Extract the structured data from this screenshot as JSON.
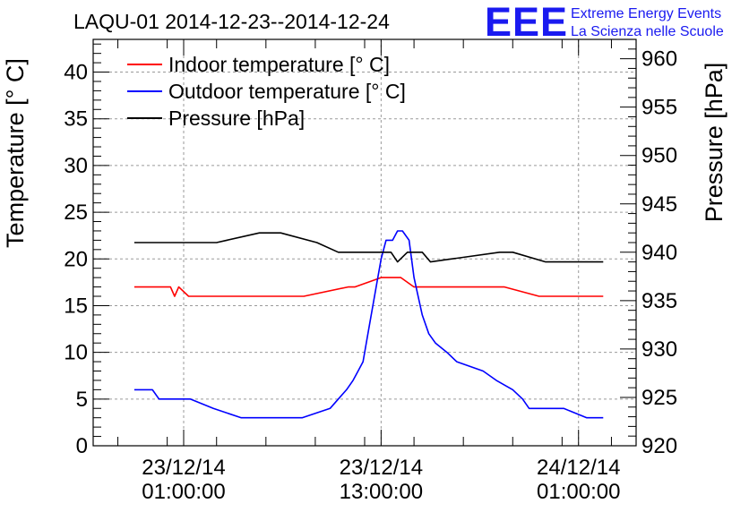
{
  "chart_data": {
    "type": "line",
    "title": "LAQU-01 2014-12-23--2014-12-24",
    "logo": {
      "letters": "EEE",
      "line1": "Extreme Energy Events",
      "line2": "La Scienza nelle Scuole"
    },
    "ylabel": "Temperature [° C]",
    "y2label": "Pressure [hPa]",
    "xlim_hours": [
      -4.5,
      28.5
    ],
    "ylim": [
      0,
      43.5
    ],
    "y2lim": [
      920,
      962
    ],
    "grid": true,
    "legend_position": "top-left",
    "x_ticks": [
      {
        "hour": 1,
        "line1": "23/12/14",
        "line2": "01:00:00"
      },
      {
        "hour": 13,
        "line1": "23/12/14",
        "line2": "13:00:00"
      },
      {
        "hour": 25,
        "line1": "24/12/14",
        "line2": "01:00:00"
      }
    ],
    "y_ticks": [
      0,
      5,
      10,
      15,
      20,
      25,
      30,
      35,
      40
    ],
    "y2_ticks": [
      920,
      925,
      930,
      935,
      940,
      945,
      950,
      955,
      960
    ],
    "series": [
      {
        "name": "Indoor temperature [° C]",
        "axis": "left",
        "color": "#ff0000",
        "x": [
          -2,
          0.2,
          0.45,
          0.7,
          1.3,
          2.7,
          5.4,
          8.3,
          11,
          11.4,
          13,
          14.2,
          15,
          20.5,
          22.6,
          26,
          26.5
        ],
        "y": [
          17,
          17,
          16,
          17,
          16,
          16,
          16,
          16,
          17,
          17,
          18,
          18,
          17,
          17,
          16,
          16,
          16
        ]
      },
      {
        "name": "Outdoor temperature [° C]",
        "axis": "left",
        "color": "#0000ff",
        "x": [
          -2,
          -0.9,
          -0.5,
          1.4,
          2.8,
          4.5,
          6.2,
          8.2,
          9.9,
          10.4,
          10.9,
          11.3,
          11.6,
          11.9,
          12.3,
          12.8,
          13.0,
          13.3,
          13.7,
          14.0,
          14.3,
          14.7,
          15.0,
          15.5,
          15.9,
          16.3,
          17.0,
          17.6,
          19.2,
          20.0,
          21.0,
          21.6,
          22.0,
          24.0,
          24.1,
          25.5,
          26.5
        ],
        "y": [
          6,
          6,
          5,
          5,
          4,
          3,
          3,
          3,
          4,
          5,
          6,
          7,
          8,
          9,
          13,
          18,
          20,
          22,
          22,
          23,
          23,
          22,
          18,
          14,
          12,
          11,
          10,
          9,
          8,
          7,
          6,
          5,
          4,
          4,
          4,
          3,
          3
        ]
      },
      {
        "name": "Pressure [hPa]",
        "axis": "right",
        "color": "#000000",
        "x": [
          -2,
          3,
          5.6,
          6.9,
          9.1,
          10.4,
          11.5,
          12.7,
          13.6,
          14.0,
          14.6,
          15.5,
          16.0,
          20.2,
          21.0,
          23.0,
          26.5
        ],
        "y": [
          941,
          941,
          942,
          942,
          941,
          940,
          940,
          940,
          940,
          939,
          940,
          940,
          939,
          940,
          940,
          939,
          939
        ]
      }
    ]
  }
}
